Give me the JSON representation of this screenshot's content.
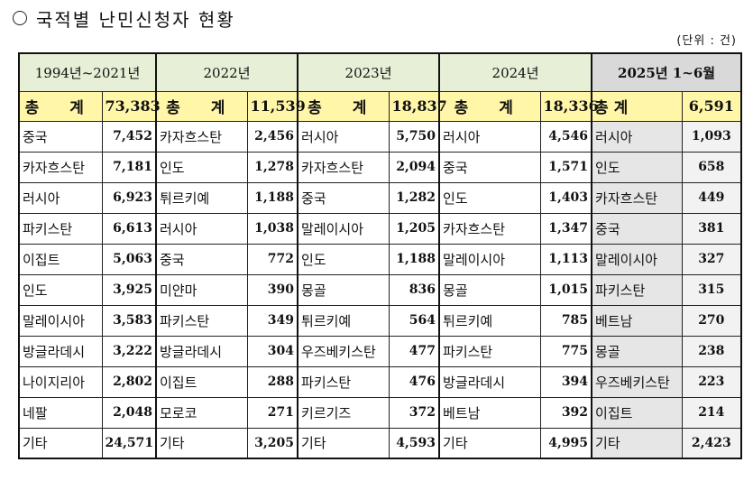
{
  "title": "국적별 난민신청자 현황",
  "unit": "(단위 : 건)",
  "periods": [
    "1994년~2021년",
    "2022년",
    "2023년",
    "2024년",
    "2025년 1~6월"
  ],
  "total_label": "총 계",
  "totals": [
    "73,383",
    "11,539",
    "18,837",
    "18,336",
    "6,591"
  ],
  "rows": [
    [
      [
        "중국",
        "7,452"
      ],
      [
        "카자흐스탄",
        "2,456"
      ],
      [
        "러시아",
        "5,750"
      ],
      [
        "러시아",
        "4,546"
      ],
      [
        "러시아",
        "1,093"
      ]
    ],
    [
      [
        "카자흐스탄",
        "7,181"
      ],
      [
        "인도",
        "1,278"
      ],
      [
        "카자흐스탄",
        "2,094"
      ],
      [
        "중국",
        "1,571"
      ],
      [
        "인도",
        "658"
      ]
    ],
    [
      [
        "러시아",
        "6,923"
      ],
      [
        "튀르키예",
        "1,188"
      ],
      [
        "중국",
        "1,282"
      ],
      [
        "인도",
        "1,403"
      ],
      [
        "카자흐스탄",
        "449"
      ]
    ],
    [
      [
        "파키스탄",
        "6,613"
      ],
      [
        "러시아",
        "1,038"
      ],
      [
        "말레이시아",
        "1,205"
      ],
      [
        "카자흐스탄",
        "1,347"
      ],
      [
        "중국",
        "381"
      ]
    ],
    [
      [
        "이집트",
        "5,063"
      ],
      [
        "중국",
        "772"
      ],
      [
        "인도",
        "1,188"
      ],
      [
        "말레이시아",
        "1,113"
      ],
      [
        "말레이시아",
        "327"
      ]
    ],
    [
      [
        "인도",
        "3,925"
      ],
      [
        "미얀마",
        "390"
      ],
      [
        "몽골",
        "836"
      ],
      [
        "몽골",
        "1,015"
      ],
      [
        "파키스탄",
        "315"
      ]
    ],
    [
      [
        "말레이시아",
        "3,583"
      ],
      [
        "파키스탄",
        "349"
      ],
      [
        "튀르키예",
        "564"
      ],
      [
        "튀르키예",
        "785"
      ],
      [
        "베트남",
        "270"
      ]
    ],
    [
      [
        "방글라데시",
        "3,222"
      ],
      [
        "방글라데시",
        "304"
      ],
      [
        "우즈베키스탄",
        "477"
      ],
      [
        "파키스탄",
        "775"
      ],
      [
        "몽골",
        "238"
      ]
    ],
    [
      [
        "나이지리아",
        "2,802"
      ],
      [
        "이집트",
        "288"
      ],
      [
        "파키스탄",
        "476"
      ],
      [
        "방글라데시",
        "394"
      ],
      [
        "우즈베키스탄",
        "223"
      ]
    ],
    [
      [
        "네팔",
        "2,048"
      ],
      [
        "모로코",
        "271"
      ],
      [
        "키르기즈",
        "372"
      ],
      [
        "베트남",
        "392"
      ],
      [
        "이집트",
        "214"
      ]
    ],
    [
      [
        "기타",
        "24,571"
      ],
      [
        "기타",
        "3,205"
      ],
      [
        "기타",
        "4,593"
      ],
      [
        "기타",
        "4,995"
      ],
      [
        "기타",
        "2,423"
      ]
    ]
  ],
  "colors": {
    "header_bg": "#e7f0d7",
    "header_last_bg": "#d9d9d9",
    "total_bg": "#fff6a8",
    "shade_bg": "#e6e6e6"
  }
}
